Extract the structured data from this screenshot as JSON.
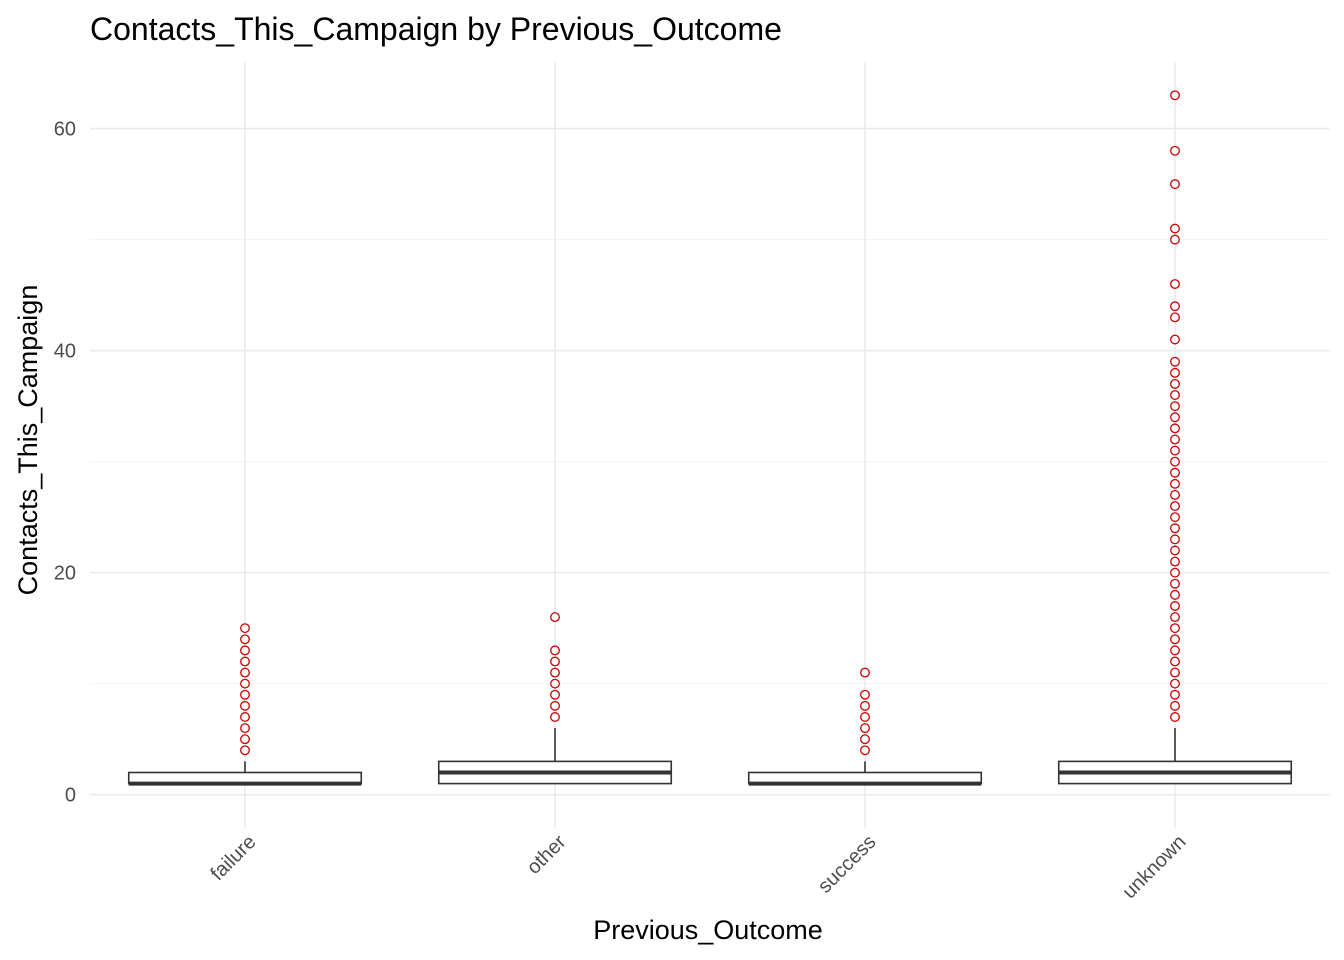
{
  "chart_data": {
    "type": "boxplot",
    "title": "Contacts_This_Campaign by Previous_Outcome",
    "xlabel": "Previous_Outcome",
    "ylabel": "Contacts_This_Campaign",
    "ylim": [
      -3,
      66
    ],
    "y_ticks": [
      0,
      20,
      40,
      60
    ],
    "y_minor_ticks": [
      10,
      30,
      50
    ],
    "grid": true,
    "legend": "none",
    "categories": [
      "failure",
      "other",
      "success",
      "unknown"
    ],
    "boxes": [
      {
        "category": "failure",
        "q1": 1,
        "median": 1,
        "q3": 2,
        "whisker_low": 1,
        "whisker_high": 3,
        "outliers": [
          4,
          5,
          6,
          7,
          8,
          9,
          10,
          11,
          12,
          13,
          14,
          15
        ]
      },
      {
        "category": "other",
        "q1": 1,
        "median": 2,
        "q3": 3,
        "whisker_low": 1,
        "whisker_high": 6,
        "outliers": [
          7,
          8,
          9,
          10,
          11,
          12,
          13,
          16
        ]
      },
      {
        "category": "success",
        "q1": 1,
        "median": 1,
        "q3": 2,
        "whisker_low": 1,
        "whisker_high": 3,
        "outliers": [
          4,
          5,
          6,
          7,
          8,
          9,
          11
        ]
      },
      {
        "category": "unknown",
        "q1": 1,
        "median": 2,
        "q3": 3,
        "whisker_low": 1,
        "whisker_high": 6,
        "outliers": [
          7,
          8,
          9,
          10,
          11,
          12,
          13,
          14,
          15,
          16,
          17,
          18,
          19,
          20,
          21,
          22,
          23,
          24,
          25,
          26,
          27,
          28,
          29,
          30,
          31,
          32,
          33,
          34,
          35,
          36,
          37,
          38,
          39,
          41,
          43,
          44,
          46,
          50,
          51,
          55,
          58,
          63
        ]
      }
    ],
    "colors": {
      "outlier": "#cc0000",
      "box_line": "#333333",
      "box_fill": "#ffffff",
      "grid_major": "#ebebeb",
      "grid_minor": "#f2f2f2"
    }
  }
}
